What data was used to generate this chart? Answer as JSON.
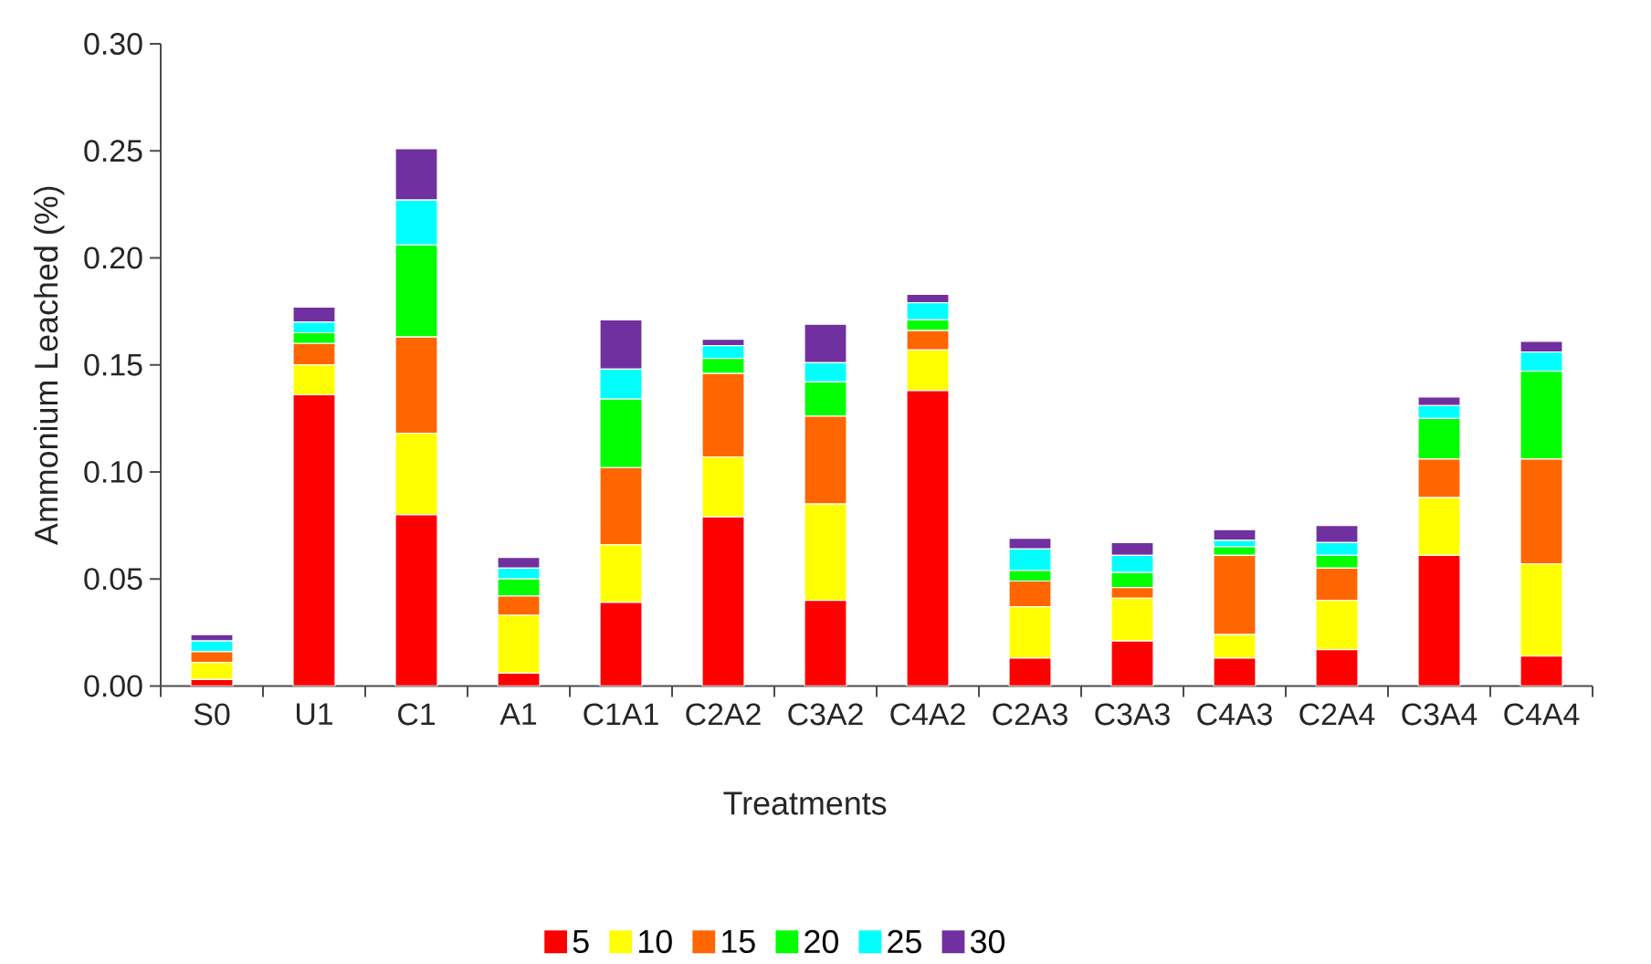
{
  "chart_data": {
    "type": "bar",
    "stacked": true,
    "xlabel": "Treatments",
    "ylabel": "Ammonium Leached (%)",
    "categories": [
      "S0",
      "U1",
      "C1",
      "A1",
      "C1A1",
      "C2A2",
      "C3A2",
      "C4A2",
      "C2A3",
      "C3A3",
      "C4A3",
      "C2A4",
      "C3A4",
      "C4A4"
    ],
    "series": [
      {
        "name": "5",
        "color": "#ff0000",
        "values": [
          0.003,
          0.136,
          0.08,
          0.006,
          0.039,
          0.079,
          0.04,
          0.138,
          0.013,
          0.021,
          0.013,
          0.017,
          0.061,
          0.014
        ]
      },
      {
        "name": "10",
        "color": "#ffff00",
        "values": [
          0.008,
          0.014,
          0.038,
          0.027,
          0.027,
          0.028,
          0.045,
          0.019,
          0.024,
          0.02,
          0.011,
          0.023,
          0.027,
          0.043
        ]
      },
      {
        "name": "15",
        "color": "#ff6600",
        "values": [
          0.005,
          0.01,
          0.045,
          0.009,
          0.036,
          0.039,
          0.041,
          0.009,
          0.012,
          0.005,
          0.037,
          0.015,
          0.018,
          0.049
        ]
      },
      {
        "name": "20",
        "color": "#00ff00",
        "values": [
          0.0,
          0.005,
          0.043,
          0.008,
          0.032,
          0.007,
          0.016,
          0.005,
          0.005,
          0.007,
          0.004,
          0.006,
          0.019,
          0.041
        ]
      },
      {
        "name": "25",
        "color": "#00ffff",
        "values": [
          0.005,
          0.005,
          0.021,
          0.005,
          0.014,
          0.006,
          0.009,
          0.008,
          0.01,
          0.008,
          0.003,
          0.006,
          0.006,
          0.009
        ]
      },
      {
        "name": "30",
        "color": "#7030a0",
        "values": [
          0.003,
          0.007,
          0.024,
          0.005,
          0.023,
          0.003,
          0.018,
          0.004,
          0.005,
          0.006,
          0.005,
          0.008,
          0.004,
          0.005
        ]
      }
    ],
    "ylim": [
      0,
      0.3
    ],
    "yticks": [
      {
        "value": 0,
        "label": "0.00"
      },
      {
        "value": 0.05,
        "label": "0.05"
      },
      {
        "value": 0.1,
        "label": "0.10"
      },
      {
        "value": 0.15,
        "label": "0.15"
      },
      {
        "value": 0.2,
        "label": "0.20"
      },
      {
        "value": 0.25,
        "label": "0.25"
      },
      {
        "value": 0.3,
        "label": "0.30"
      }
    ],
    "legend": "bottom"
  }
}
